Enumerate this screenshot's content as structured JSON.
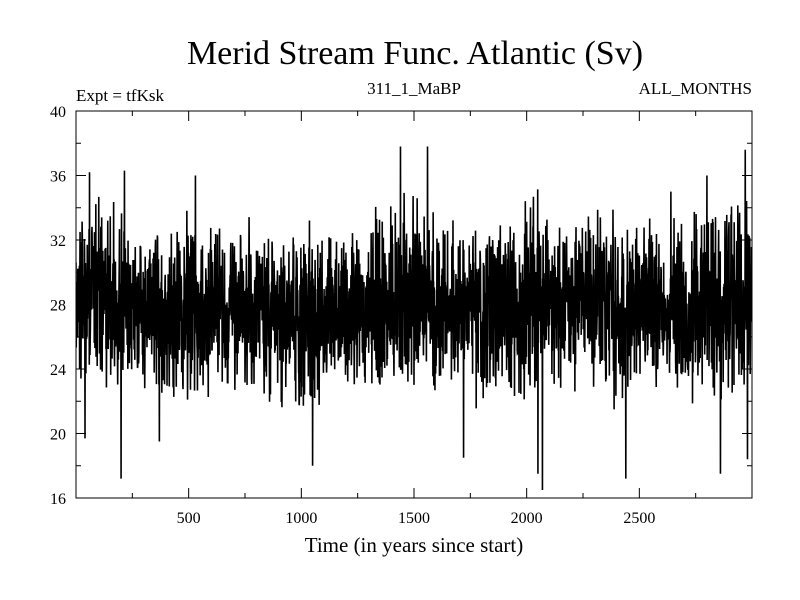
{
  "chart_data": {
    "type": "line",
    "title": "Merid Stream Func. Atlantic (Sv)",
    "subtitle_left": "Expt = tfKsk",
    "subtitle_center": "311_1_MaBP",
    "subtitle_right": "ALL_MONTHS",
    "xlabel": "Time (in years since start)",
    "ylabel": "",
    "xlim": [
      0,
      3000
    ],
    "ylim": [
      16,
      40
    ],
    "x_ticks": [
      500,
      1000,
      1500,
      2000,
      2500
    ],
    "x_tick_labels": [
      "500",
      "1000",
      "1500",
      "2000",
      "2500"
    ],
    "y_ticks": [
      16,
      20,
      24,
      28,
      32,
      36,
      40
    ],
    "y_tick_labels": [
      "16",
      "20",
      "24",
      "28",
      "32",
      "36",
      "40"
    ],
    "grid": false,
    "series": [
      {
        "color": "#000000",
        "x": [
          0,
          100,
          200,
          300,
          400,
          500,
          600,
          700,
          800,
          900,
          1000,
          1100,
          1200,
          1300,
          1400,
          1500,
          1600,
          1700,
          1800,
          1900,
          2000,
          2100,
          2200,
          2300,
          2400,
          2500,
          2600,
          2700,
          2800,
          2900,
          3000
        ],
        "mean": [
          28.6,
          28.3,
          27.8,
          27.6,
          27.5,
          27.6,
          27.8,
          27.9,
          27.6,
          27.4,
          27.3,
          27.4,
          27.6,
          27.9,
          28.2,
          28.3,
          28.1,
          27.9,
          27.8,
          28.0,
          28.2,
          28.4,
          28.3,
          28.1,
          27.6,
          27.3,
          27.5,
          27.8,
          28.0,
          28.2,
          28.1
        ],
        "upper_envelope": [
          33.0,
          34.5,
          33.0,
          32.5,
          33.0,
          33.5,
          32.5,
          32.0,
          32.5,
          31.5,
          32.0,
          32.0,
          33.0,
          34.0,
          35.0,
          35.0,
          33.5,
          32.5,
          32.0,
          33.0,
          33.5,
          33.5,
          33.0,
          33.5,
          32.5,
          32.0,
          32.5,
          32.5,
          33.5,
          34.0,
          33.0
        ],
        "lower_envelope": [
          22.5,
          23.0,
          21.5,
          22.5,
          22.0,
          22.5,
          22.5,
          23.0,
          22.5,
          21.5,
          21.5,
          22.5,
          22.5,
          23.0,
          23.0,
          23.5,
          22.5,
          22.0,
          21.5,
          22.5,
          21.5,
          22.5,
          22.5,
          23.0,
          21.5,
          22.0,
          22.5,
          22.5,
          22.0,
          22.0,
          22.5
        ],
        "peaks": [
          {
            "x": 18,
            "y": 32.5
          },
          {
            "x": 40,
            "y": 19.7
          },
          {
            "x": 60,
            "y": 36.2
          },
          {
            "x": 200,
            "y": 17.2
          },
          {
            "x": 215,
            "y": 36.3
          },
          {
            "x": 370,
            "y": 19.5
          },
          {
            "x": 530,
            "y": 36.0
          },
          {
            "x": 1050,
            "y": 18.0
          },
          {
            "x": 1440,
            "y": 37.8
          },
          {
            "x": 1560,
            "y": 37.8
          },
          {
            "x": 1720,
            "y": 18.5
          },
          {
            "x": 2070,
            "y": 16.5
          },
          {
            "x": 2050,
            "y": 17.5
          },
          {
            "x": 2440,
            "y": 17.2
          },
          {
            "x": 2640,
            "y": 35.0
          },
          {
            "x": 2800,
            "y": 36.0
          },
          {
            "x": 2860,
            "y": 17.5
          },
          {
            "x": 2970,
            "y": 37.6
          },
          {
            "x": 2980,
            "y": 18.4
          }
        ]
      }
    ]
  }
}
